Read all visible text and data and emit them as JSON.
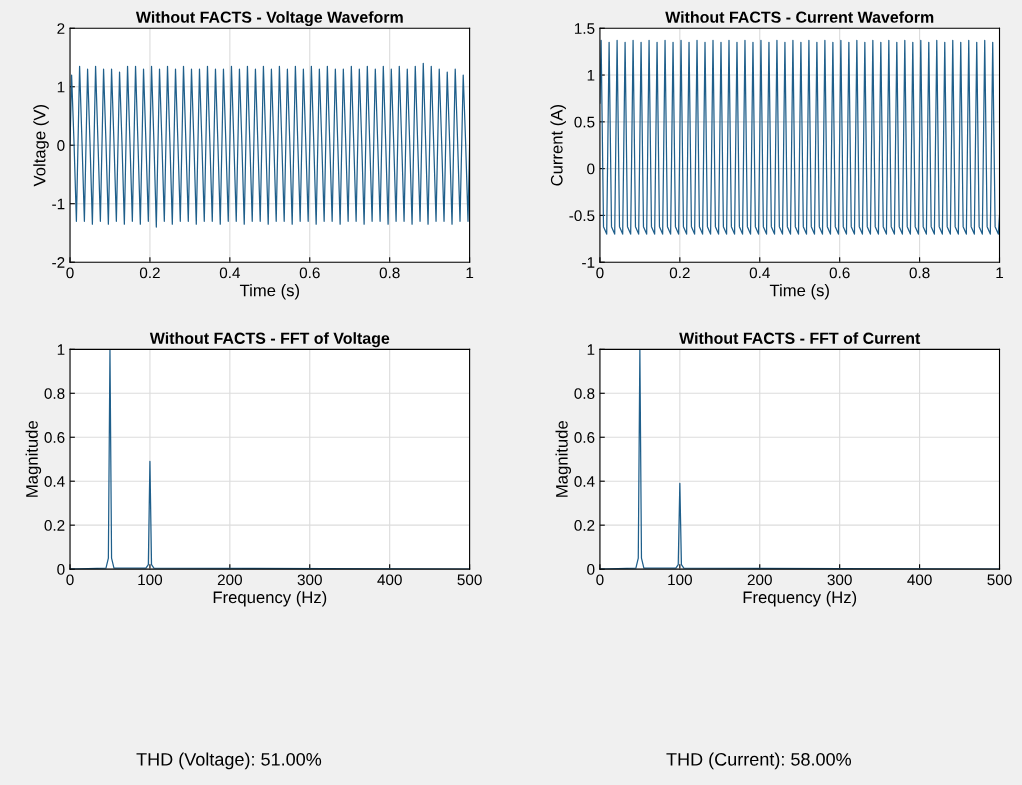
{
  "chart_data": [
    {
      "type": "line",
      "title": "Without FACTS - Voltage Waveform",
      "xlabel": "Time (s)",
      "ylabel": "Voltage (V)",
      "xlim": [
        0,
        1
      ],
      "ylim": [
        -2,
        2
      ],
      "xticks": [
        0,
        0.2,
        0.4,
        0.6,
        0.8,
        1
      ],
      "yticks": [
        -2,
        -1,
        0,
        1,
        2
      ],
      "grid": true,
      "x": [
        0,
        0.004,
        0.01,
        0.016,
        0.024,
        0.03,
        0.036,
        0.044,
        0.05,
        0.056,
        0.064,
        0.07,
        0.076,
        0.084,
        0.09,
        0.096,
        0.104,
        0.11,
        0.116,
        0.124,
        0.13,
        0.136,
        0.144,
        0.15,
        0.156,
        0.164,
        0.17,
        0.176,
        0.184,
        0.19,
        0.196,
        0.204,
        0.21,
        0.216,
        0.224,
        0.23,
        0.236,
        0.244,
        0.25,
        0.256,
        0.264,
        0.27,
        0.276,
        0.284,
        0.29,
        0.296,
        0.304,
        0.31,
        0.316,
        0.324,
        0.33,
        0.336,
        0.344,
        0.35,
        0.356,
        0.364,
        0.37,
        0.376,
        0.384,
        0.39,
        0.396,
        0.404,
        0.41,
        0.416,
        0.424,
        0.43,
        0.436,
        0.444,
        0.45,
        0.456,
        0.464,
        0.47,
        0.476,
        0.484,
        0.49,
        0.496,
        0.504,
        0.51,
        0.516,
        0.524,
        0.53,
        0.536,
        0.544,
        0.55,
        0.556,
        0.564,
        0.57,
        0.576,
        0.584,
        0.59,
        0.596,
        0.604,
        0.61,
        0.616,
        0.624,
        0.63,
        0.636,
        0.644,
        0.65,
        0.656,
        0.664,
        0.67,
        0.676,
        0.684,
        0.69,
        0.696,
        0.704,
        0.71,
        0.716,
        0.724,
        0.73,
        0.736,
        0.744,
        0.75,
        0.756,
        0.764,
        0.77,
        0.776,
        0.784,
        0.79,
        0.796,
        0.804,
        0.81,
        0.816,
        0.824,
        0.83,
        0.836,
        0.844,
        0.85,
        0.856,
        0.864,
        0.87,
        0.876,
        0.884,
        0.89,
        0.896,
        0.904,
        0.91,
        0.916,
        0.924,
        0.93,
        0.936,
        0.944,
        0.95,
        0.956,
        0.964,
        0.97,
        0.976,
        0.984,
        0.99,
        0.996,
        1
      ],
      "series": [
        {
          "color": "#1f5f8b",
          "values": [
            0,
            1.2,
            0.05,
            -1.3,
            1.35,
            0.05,
            -1.3,
            1.3,
            0.05,
            -1.35,
            1.35,
            0.05,
            -1.3,
            1.3,
            0.05,
            -1.35,
            1.3,
            0.05,
            -1.3,
            1.25,
            0.05,
            -1.35,
            1.35,
            0.05,
            -1.3,
            1.35,
            0.05,
            -1.35,
            1.3,
            0.05,
            -1.3,
            1.35,
            0.05,
            -1.4,
            1.3,
            0.05,
            -1.3,
            1.35,
            0.05,
            -1.35,
            1.3,
            0.05,
            -1.3,
            1.35,
            0.05,
            -1.3,
            1.3,
            0.05,
            -1.35,
            1.3,
            0.05,
            -1.3,
            1.35,
            0.05,
            -1.3,
            1.3,
            0.05,
            -1.35,
            1.3,
            0.05,
            -1.3,
            1.35,
            0.05,
            -1.3,
            1.3,
            0.05,
            -1.35,
            1.35,
            0.05,
            -1.3,
            1.3,
            0.05,
            -1.3,
            1.35,
            0.05,
            -1.35,
            1.3,
            0.05,
            -1.3,
            1.35,
            0.05,
            -1.3,
            1.3,
            0.05,
            -1.35,
            1.35,
            0.05,
            -1.3,
            1.3,
            0.05,
            -1.3,
            1.35,
            0.05,
            -1.35,
            1.3,
            0.05,
            -1.3,
            1.35,
            0.05,
            -1.3,
            1.3,
            0.05,
            -1.35,
            1.3,
            0.05,
            -1.3,
            1.35,
            0.05,
            -1.3,
            1.3,
            0.05,
            -1.35,
            1.35,
            0.05,
            -1.3,
            1.3,
            0.05,
            -1.3,
            1.35,
            0.05,
            -1.35,
            1.3,
            0.05,
            -1.3,
            1.35,
            0.05,
            -1.3,
            1.3,
            0.05,
            -1.35,
            1.35,
            0.05,
            -1.3,
            1.4,
            0.05,
            -1.35,
            1.35,
            0.05,
            -1.3,
            1.3,
            0.05,
            -1.3,
            1.25,
            0.05,
            -1.35,
            1.3,
            0.05,
            -1.3,
            1.2,
            0.05,
            -1.3,
            0
          ]
        }
      ]
    },
    {
      "type": "line",
      "title": "Without FACTS - Current Waveform",
      "xlabel": "Time (s)",
      "ylabel": "Current (A)",
      "xlim": [
        0,
        1
      ],
      "ylim": [
        -1,
        1.5
      ],
      "xticks": [
        0,
        0.2,
        0.4,
        0.6,
        0.8,
        1
      ],
      "yticks": [
        -1,
        -0.5,
        0,
        0.5,
        1,
        1.5
      ],
      "grid": true,
      "x": [
        0,
        0.003,
        0.009,
        0.017,
        0.023,
        0.029,
        0.037,
        0.043,
        0.049,
        0.057,
        0.063,
        0.069,
        0.077,
        0.083,
        0.089,
        0.097,
        0.103,
        0.109,
        0.117,
        0.123,
        0.129,
        0.137,
        0.143,
        0.149,
        0.157,
        0.163,
        0.169,
        0.177,
        0.183,
        0.189,
        0.197,
        0.203,
        0.209,
        0.217,
        0.223,
        0.229,
        0.237,
        0.243,
        0.249,
        0.257,
        0.263,
        0.269,
        0.277,
        0.283,
        0.289,
        0.297,
        0.303,
        0.309,
        0.317,
        0.323,
        0.329,
        0.337,
        0.343,
        0.349,
        0.357,
        0.363,
        0.369,
        0.377,
        0.383,
        0.389,
        0.397,
        0.403,
        0.409,
        0.417,
        0.423,
        0.429,
        0.437,
        0.443,
        0.449,
        0.457,
        0.463,
        0.469,
        0.477,
        0.483,
        0.489,
        0.497,
        0.503,
        0.509,
        0.517,
        0.523,
        0.529,
        0.537,
        0.543,
        0.549,
        0.557,
        0.563,
        0.569,
        0.577,
        0.583,
        0.589,
        0.597,
        0.603,
        0.609,
        0.617,
        0.623,
        0.629,
        0.637,
        0.643,
        0.649,
        0.657,
        0.663,
        0.669,
        0.677,
        0.683,
        0.689,
        0.697,
        0.703,
        0.709,
        0.717,
        0.723,
        0.729,
        0.737,
        0.743,
        0.749,
        0.757,
        0.763,
        0.769,
        0.777,
        0.783,
        0.789,
        0.797,
        0.803,
        0.809,
        0.817,
        0.823,
        0.829,
        0.837,
        0.843,
        0.849,
        0.857,
        0.863,
        0.869,
        0.877,
        0.883,
        0.889,
        0.897,
        0.903,
        0.909,
        0.917,
        0.923,
        0.929,
        0.937,
        0.943,
        0.949,
        0.957,
        0.963,
        0.969,
        0.977,
        0.983,
        0.989,
        0.997,
        1
      ],
      "series": [
        {
          "color": "#1f5f8b",
          "values": [
            0.7,
            1.37,
            -0.62,
            -0.7,
            1.35,
            -0.62,
            -0.7,
            1.37,
            -0.62,
            -0.7,
            1.35,
            -0.62,
            -0.7,
            1.37,
            -0.62,
            -0.7,
            1.35,
            -0.62,
            -0.7,
            1.37,
            -0.62,
            -0.7,
            1.35,
            -0.62,
            -0.7,
            1.37,
            -0.62,
            -0.7,
            1.35,
            -0.62,
            -0.7,
            1.37,
            -0.62,
            -0.7,
            1.35,
            -0.62,
            -0.7,
            1.37,
            -0.62,
            -0.7,
            1.35,
            -0.62,
            -0.7,
            1.37,
            -0.62,
            -0.7,
            1.35,
            -0.62,
            -0.7,
            1.37,
            -0.62,
            -0.7,
            1.35,
            -0.62,
            -0.7,
            1.37,
            -0.62,
            -0.7,
            1.35,
            -0.62,
            -0.7,
            1.37,
            -0.62,
            -0.7,
            1.35,
            -0.62,
            -0.7,
            1.37,
            -0.62,
            -0.7,
            1.35,
            -0.62,
            -0.7,
            1.37,
            -0.62,
            -0.7,
            1.35,
            -0.62,
            -0.7,
            1.37,
            -0.62,
            -0.7,
            1.35,
            -0.62,
            -0.7,
            1.37,
            -0.62,
            -0.7,
            1.35,
            -0.62,
            -0.7,
            1.37,
            -0.62,
            -0.7,
            1.35,
            -0.62,
            -0.7,
            1.37,
            -0.62,
            -0.7,
            1.35,
            -0.62,
            -0.7,
            1.37,
            -0.62,
            -0.7,
            1.35,
            -0.62,
            -0.7,
            1.37,
            -0.62,
            -0.7,
            1.35,
            -0.62,
            -0.7,
            1.37,
            -0.62,
            -0.7,
            1.35,
            -0.62,
            -0.7,
            1.37,
            -0.62,
            -0.7,
            1.35,
            -0.62,
            -0.7,
            1.37,
            -0.62,
            -0.7,
            1.35,
            -0.62,
            -0.7,
            1.37,
            -0.62,
            -0.7,
            1.35,
            -0.62,
            -0.7,
            1.37,
            -0.62,
            -0.7,
            1.35,
            -0.62,
            -0.7,
            1.37,
            -0.62,
            -0.7,
            1.35,
            -0.62,
            -0.7,
            -0.5
          ]
        }
      ]
    },
    {
      "type": "line",
      "title": "Without FACTS - FFT of Voltage",
      "xlabel": "Frequency (Hz)",
      "ylabel": "Magnitude",
      "xlim": [
        0,
        500
      ],
      "ylim": [
        0,
        1
      ],
      "xticks": [
        0,
        100,
        200,
        300,
        400,
        500
      ],
      "yticks": [
        0,
        0.2,
        0.4,
        0.6,
        0.8,
        1
      ],
      "grid": true,
      "x": [
        0,
        45,
        48,
        50,
        52,
        55,
        95,
        98,
        100,
        102,
        105,
        500
      ],
      "series": [
        {
          "color": "#1f5f8b",
          "values": [
            0,
            0.005,
            0.05,
            1,
            0.05,
            0.005,
            0.005,
            0.02,
            0.49,
            0.02,
            0.005,
            0
          ]
        }
      ],
      "annotations": [
        "THD (Voltage): 51.00%"
      ]
    },
    {
      "type": "line",
      "title": "Without FACTS - FFT of Current",
      "xlabel": "Frequency (Hz)",
      "ylabel": "Magnitude",
      "xlim": [
        0,
        500
      ],
      "ylim": [
        0,
        1
      ],
      "xticks": [
        0,
        100,
        200,
        300,
        400,
        500
      ],
      "yticks": [
        0,
        0.2,
        0.4,
        0.6,
        0.8,
        1
      ],
      "grid": true,
      "x": [
        0,
        45,
        48,
        50,
        52,
        55,
        95,
        98,
        100,
        102,
        105,
        500
      ],
      "series": [
        {
          "color": "#1f5f8b",
          "values": [
            0,
            0.005,
            0.05,
            1,
            0.05,
            0.005,
            0.005,
            0.02,
            0.39,
            0.02,
            0.005,
            0
          ]
        }
      ],
      "annotations": [
        "THD (Current): 58.00%"
      ]
    }
  ]
}
